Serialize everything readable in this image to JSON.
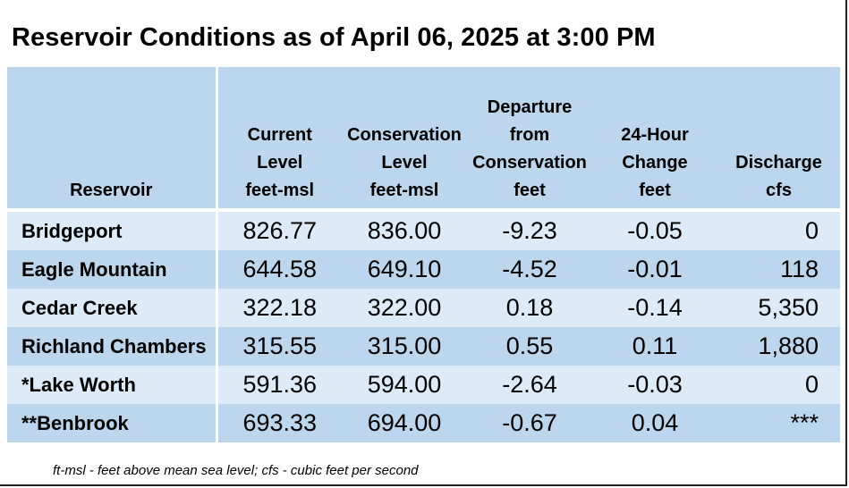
{
  "title": "Reservoir Conditions as of April 06, 2025 at 3:00 PM",
  "table": {
    "headers": [
      [
        "Reservoir"
      ],
      [
        "Current",
        "Level",
        "feet-msl"
      ],
      [
        "Conservation",
        "Level",
        "feet-msl"
      ],
      [
        "Departure",
        "from",
        "Conservation",
        "feet"
      ],
      [
        "24-Hour",
        "Change",
        "feet"
      ],
      [
        "Discharge",
        "cfs"
      ]
    ],
    "rows": [
      {
        "reservoir": "Bridgeport",
        "current": "826.77",
        "conservation": "836.00",
        "departure": "-9.23",
        "change": "-0.05",
        "discharge": "0"
      },
      {
        "reservoir": "Eagle Mountain",
        "current": "644.58",
        "conservation": "649.10",
        "departure": "-4.52",
        "change": "-0.01",
        "discharge": "118"
      },
      {
        "reservoir": "Cedar Creek",
        "current": "322.18",
        "conservation": "322.00",
        "departure": "0.18",
        "change": "-0.14",
        "discharge": "5,350"
      },
      {
        "reservoir": "Richland Chambers",
        "current": "315.55",
        "conservation": "315.00",
        "departure": "0.55",
        "change": "0.11",
        "discharge": "1,880"
      },
      {
        "reservoir": "*Lake Worth",
        "current": "591.36",
        "conservation": "594.00",
        "departure": "-2.64",
        "change": "-0.03",
        "discharge": "0"
      },
      {
        "reservoir": "**Benbrook",
        "current": "693.33",
        "conservation": "694.00",
        "departure": "-0.67",
        "change": "0.04",
        "discharge": "***"
      }
    ]
  },
  "footnote": "ft-msl - feet above mean sea level; cfs - cubic feet per second",
  "colors": {
    "header_bg": "#bcd6ee",
    "row_light": "#dcebf7",
    "row_dark": "#bcd6ee"
  }
}
